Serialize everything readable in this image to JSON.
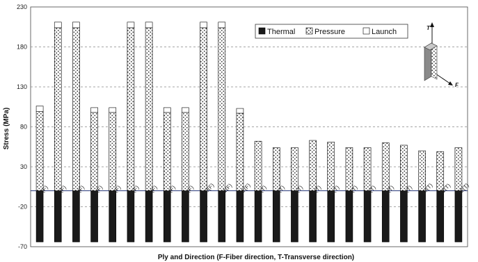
{
  "chart_data": {
    "type": "bar",
    "stacked": true,
    "xlabel": "Ply and Direction (F-Fiber direction, T-Transverse direction)",
    "ylabel": "Stress (MPa)",
    "ylim": [
      -70,
      230
    ],
    "yticks": [
      -70,
      -20,
      30,
      80,
      130,
      180,
      230
    ],
    "grid": "horizontal-dashed",
    "legend_position": "top-right",
    "categories": [
      "1(F)",
      "2(F)",
      "3(F)",
      "4(F)",
      "5(F)",
      "6(F)",
      "7(F)",
      "8(F)",
      "9(F)",
      "10(F)",
      "11(F)",
      "12(F)",
      "1(T)",
      "2(T)",
      "3(T)",
      "4(T)",
      "5(T)",
      "6(T)",
      "7(T)",
      "8(T)",
      "9(T)",
      "10(T)",
      "11(T)",
      "12(T)"
    ],
    "series": [
      {
        "name": "Thermal",
        "color": "#1a1a1a",
        "pattern": "solid",
        "values": [
          -64,
          -64,
          -64,
          -64,
          -64,
          -64,
          -64,
          -64,
          -64,
          -64,
          -64,
          -64,
          -64,
          -64,
          -64,
          -64,
          -64,
          -64,
          -64,
          -64,
          -64,
          -64,
          -64,
          -64
        ]
      },
      {
        "name": "Pressure",
        "color": "#ffffff",
        "pattern": "dotted",
        "values": [
          99,
          204,
          204,
          98,
          98,
          204,
          204,
          98,
          98,
          204,
          204,
          97,
          62,
          54,
          54,
          63,
          61,
          54,
          54,
          60,
          57,
          50,
          49,
          54
        ]
      },
      {
        "name": "Launch",
        "color": "#ffffff",
        "pattern": "plain",
        "values": [
          7,
          7,
          7,
          6,
          6,
          7,
          7,
          6,
          6,
          7,
          7,
          6,
          0,
          0,
          0,
          0,
          0,
          0,
          0,
          0,
          0,
          0,
          0,
          0
        ]
      }
    ]
  },
  "inset": {
    "axis_up": "T",
    "axis_side": "F"
  }
}
